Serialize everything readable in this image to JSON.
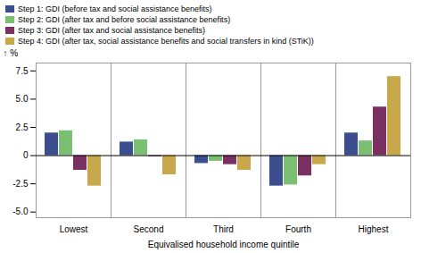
{
  "chart_data": {
    "type": "bar",
    "categories": [
      "Lowest",
      "Second",
      "Third",
      "Fourth",
      "Highest"
    ],
    "series": [
      {
        "name": "Step 1: GDI (before tax and social assistance benefits)",
        "color": "#3d4e8f",
        "values": [
          2.0,
          1.2,
          -0.7,
          -2.7,
          2.0
        ]
      },
      {
        "name": "Step 2: GDI (after tax and before social assistance benefits)",
        "color": "#7abf72",
        "values": [
          2.2,
          1.4,
          -0.5,
          -2.6,
          1.3
        ]
      },
      {
        "name": "Step 3: GDI (after tax and social assistance benefits)",
        "color": "#7a3060",
        "values": [
          -1.3,
          -0.1,
          -0.8,
          -1.8,
          4.3
        ]
      },
      {
        "name": "Step 4: GDI (after tax, social assistance benefits and social transfers in kind (STiK))",
        "color": "#c9a84c",
        "values": [
          -2.7,
          -1.7,
          -1.3,
          -0.8,
          7.0
        ]
      }
    ],
    "xlabel": "Equivalised household income quintile",
    "ylabel": "%",
    "ylim": [
      -5.5,
      8.2
    ],
    "yticks": [
      {
        "value": -5.0,
        "label": "-5.0"
      },
      -2.5,
      0,
      2.5,
      {
        "value": 5.0,
        "label": "5.0"
      },
      7.5
    ],
    "legend": "upper left",
    "grid": false
  }
}
